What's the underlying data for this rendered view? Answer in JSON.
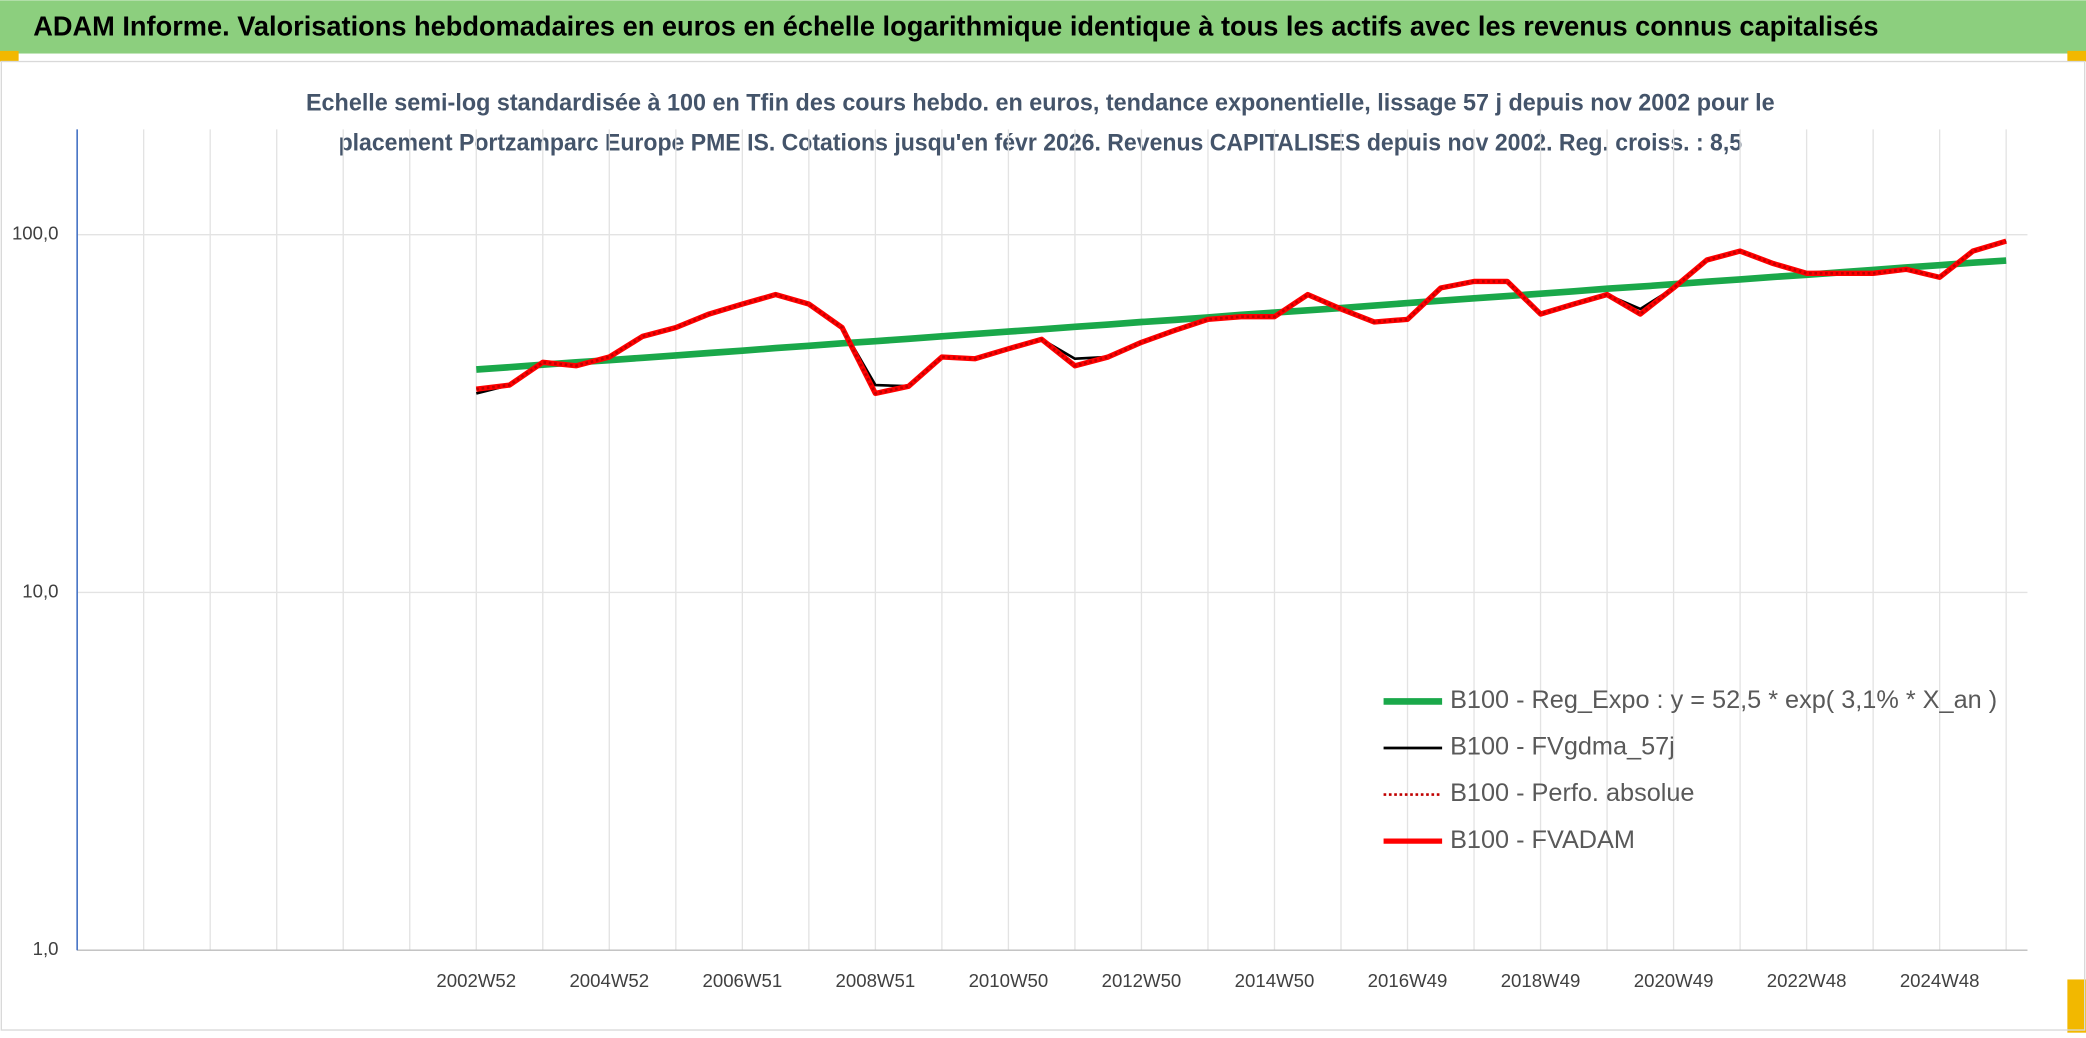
{
  "header": {
    "title": "ADAM Informe. Valorisations hebdomadaires en euros en échelle logarithmique identique à tous les actifs avec les revenus connus capitalisés"
  },
  "chart_data": {
    "type": "line",
    "title": [
      "Echelle semi-log standardisée à 100 en Tfin des cours hebdo. en euros, tendance exponentielle, lissage 57 j depuis nov 2002 pour le",
      "placement Portzamparc Europe PME IS. Cotations jusqu'en févr 2026. Revenus CAPITALISES depuis nov 2002. Reg. croiss. : 8,5"
    ],
    "categories": [
      null,
      null,
      null,
      null,
      null,
      null,
      null,
      null,
      null,
      null,
      null,
      null,
      "2002W52",
      null,
      null,
      null,
      "2004W52",
      null,
      null,
      null,
      "2006W51",
      null,
      null,
      null,
      "2008W51",
      null,
      null,
      null,
      "2010W50",
      null,
      null,
      null,
      "2012W50",
      null,
      null,
      null,
      "2014W50",
      null,
      null,
      null,
      "2016W49",
      null,
      null,
      null,
      "2018W49",
      null,
      null,
      null,
      "2020W49",
      null,
      null,
      null,
      "2022W48",
      null,
      null,
      null,
      "2024W48",
      null,
      null
    ],
    "series": [
      {
        "name": "B100 - Reg_Expo : y = 52,5 * exp( 3,1% *  X_an )",
        "color": "#1aa84a",
        "linestyle": "solid",
        "linewidth": 5,
        "values": [
          null,
          null,
          null,
          null,
          null,
          null,
          null,
          null,
          null,
          null,
          null,
          null,
          42,
          42.6,
          43.3,
          44.0,
          44.6,
          45.3,
          46.0,
          46.7,
          47.4,
          48.2,
          48.9,
          49.7,
          50.4,
          51.2,
          52.0,
          52.8,
          53.6,
          54.4,
          55.3,
          56.1,
          57.0,
          57.8,
          58.7,
          59.7,
          60.6,
          61.5,
          62.4,
          63.4,
          64.4,
          65.4,
          66.4,
          67.4,
          68.4,
          69.5,
          70.6,
          71.6,
          72.7,
          73.9,
          75.0,
          76.2,
          77.3,
          78.5,
          79.7,
          81.0,
          82.2,
          83.5,
          84.7
        ]
      },
      {
        "name": "B100 - FVgdma_57j",
        "color": "#000000",
        "linestyle": "solid",
        "linewidth": 2,
        "values": [
          null,
          null,
          null,
          null,
          null,
          null,
          null,
          null,
          null,
          null,
          null,
          null,
          36,
          38,
          44,
          43,
          45.5,
          52,
          55,
          60,
          64,
          68,
          64,
          55,
          38,
          37.7,
          45.5,
          45,
          48,
          51,
          45,
          45.5,
          50,
          54,
          58,
          59,
          59,
          68,
          62,
          57,
          58,
          71,
          74,
          74,
          60,
          64,
          68,
          62,
          71,
          85,
          90,
          83,
          78,
          78,
          78,
          80,
          76,
          90,
          96
        ]
      },
      {
        "name": "B100 - Perfo. absolue",
        "color": "#c00000",
        "linestyle": "dotted",
        "linewidth": 2,
        "values": [
          null,
          null,
          null,
          null,
          null,
          null,
          null,
          null,
          null,
          null,
          null,
          null,
          37,
          38,
          44,
          43,
          45.5,
          52,
          55,
          60,
          64,
          68,
          64,
          55,
          36,
          37.7,
          45.5,
          45,
          48,
          51,
          43,
          45.5,
          50,
          54,
          58,
          59,
          59,
          68,
          62,
          57,
          58,
          71,
          74,
          74,
          60,
          64,
          68,
          60,
          71,
          85,
          90,
          83,
          78,
          78,
          78,
          80,
          76,
          90,
          96
        ]
      },
      {
        "name": "B100 - FVADAM",
        "color": "#ff0000",
        "linestyle": "solid",
        "linewidth": 4,
        "values": [
          null,
          null,
          null,
          null,
          null,
          null,
          null,
          null,
          null,
          null,
          null,
          null,
          37,
          38,
          44,
          43,
          45.5,
          52,
          55,
          60,
          64,
          68,
          64,
          55,
          36,
          37.7,
          45.5,
          45,
          48,
          51,
          43,
          45.5,
          50,
          54,
          58,
          59,
          59,
          68,
          62,
          57,
          58,
          71,
          74,
          74,
          60,
          64,
          68,
          60,
          71,
          85,
          90,
          83,
          78,
          78,
          78,
          80,
          76,
          90,
          96
        ]
      }
    ],
    "log_y": true,
    "ylim": [
      1,
      197
    ],
    "yticks": [
      {
        "value": 1,
        "label": "1,0"
      },
      {
        "value": 10,
        "label": "10,0"
      },
      {
        "value": 100,
        "label": "100,0"
      }
    ],
    "grid": true,
    "legend": "lower right"
  }
}
